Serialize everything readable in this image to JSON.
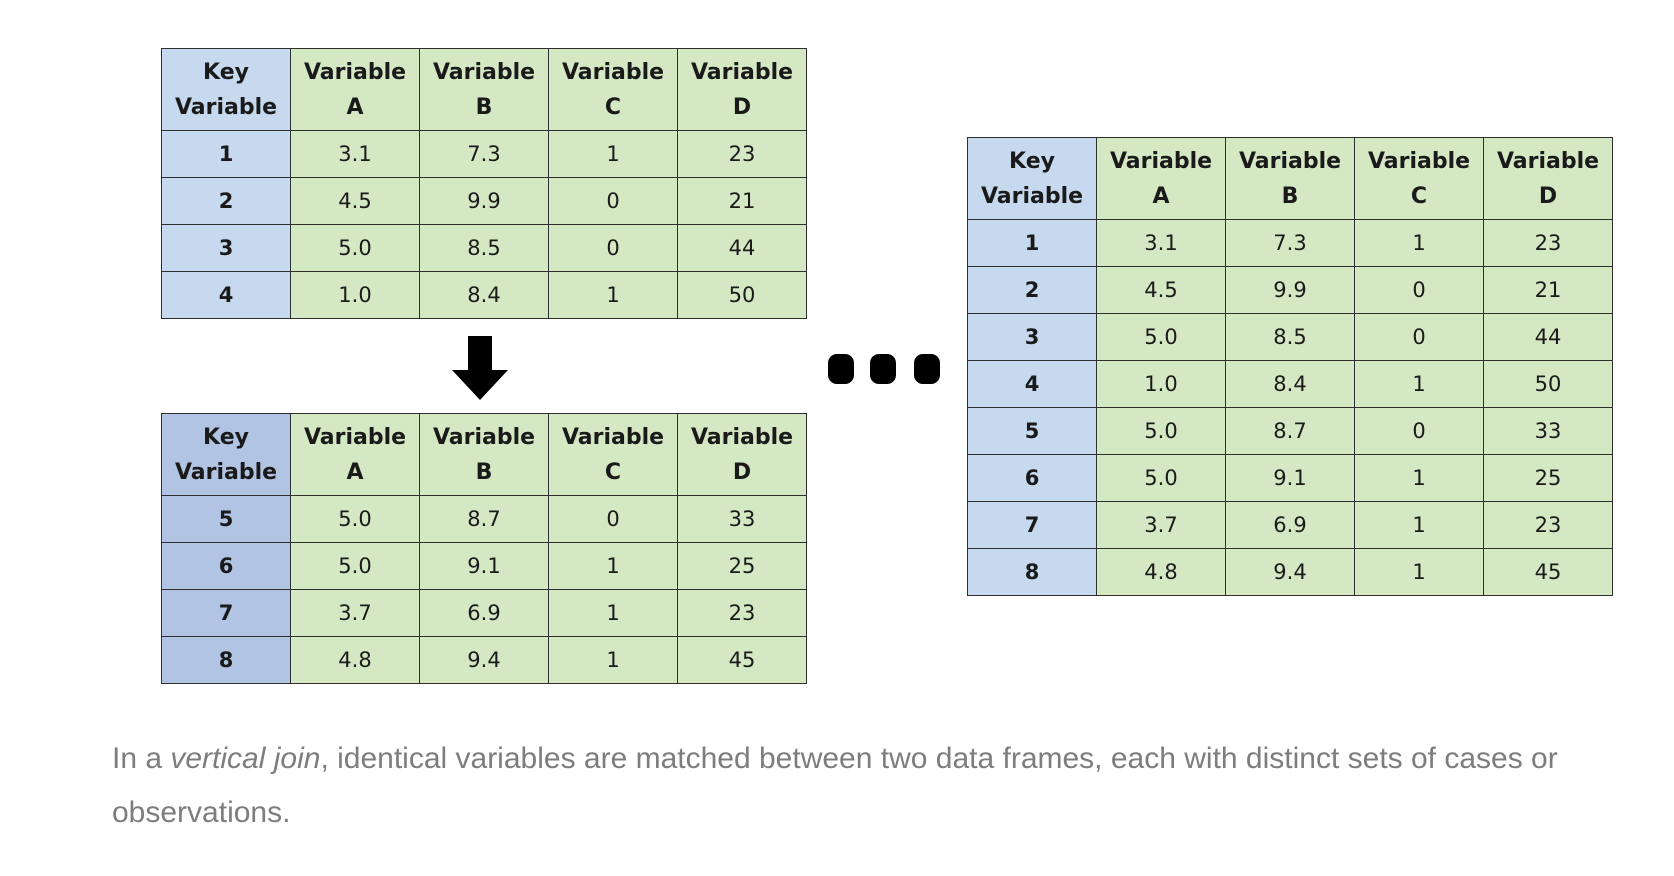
{
  "header_row": [
    [
      "Key",
      "Variable"
    ],
    [
      "Variable",
      "A"
    ],
    [
      "Variable",
      "B"
    ],
    [
      "Variable",
      "C"
    ],
    [
      "Variable",
      "D"
    ]
  ],
  "table_top": [
    [
      "1",
      "3.1",
      "7.3",
      "1",
      "23"
    ],
    [
      "2",
      "4.5",
      "9.9",
      "0",
      "21"
    ],
    [
      "3",
      "5.0",
      "8.5",
      "0",
      "44"
    ],
    [
      "4",
      "1.0",
      "8.4",
      "1",
      "50"
    ]
  ],
  "table_bottom": [
    [
      "5",
      "5.0",
      "8.7",
      "0",
      "33"
    ],
    [
      "6",
      "5.0",
      "9.1",
      "1",
      "25"
    ],
    [
      "7",
      "3.7",
      "6.9",
      "1",
      "23"
    ],
    [
      "8",
      "4.8",
      "9.4",
      "1",
      "45"
    ]
  ],
  "table_result": [
    [
      "1",
      "3.1",
      "7.3",
      "1",
      "23"
    ],
    [
      "2",
      "4.5",
      "9.9",
      "0",
      "21"
    ],
    [
      "3",
      "5.0",
      "8.5",
      "0",
      "44"
    ],
    [
      "4",
      "1.0",
      "8.4",
      "1",
      "50"
    ],
    [
      "5",
      "5.0",
      "8.7",
      "0",
      "33"
    ],
    [
      "6",
      "5.0",
      "9.1",
      "1",
      "25"
    ],
    [
      "7",
      "3.7",
      "6.9",
      "1",
      "23"
    ],
    [
      "8",
      "4.8",
      "9.4",
      "1",
      "45"
    ]
  ],
  "caption": {
    "prefix": "In a ",
    "emphasis": "vertical join",
    "suffix": ", identical variables are matched between two data frames, each with distinct sets of cases or observations."
  },
  "icons": {
    "arrow": "down-arrow-icon",
    "ellipsis": "ellipsis-icon"
  },
  "colors": {
    "key_column": "#c6d9ee",
    "key_column_bottom": "#b2c4e4",
    "value_cells": "#d5e8c4",
    "caption_text": "#7d7d7d"
  }
}
